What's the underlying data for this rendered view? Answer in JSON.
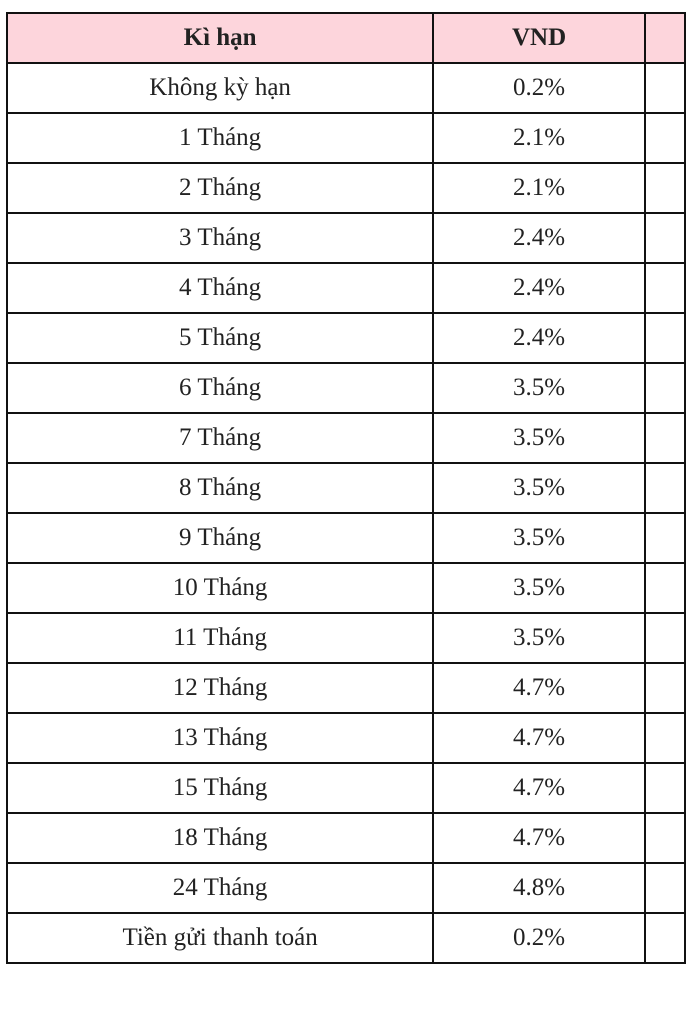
{
  "table": {
    "header_bg": "#fdd5dc",
    "headers": [
      "Kì hạn",
      "VND",
      ""
    ],
    "rows": [
      {
        "term": "Không kỳ hạn",
        "vnd": "0.2%"
      },
      {
        "term": "1 Tháng",
        "vnd": "2.1%"
      },
      {
        "term": "2 Tháng",
        "vnd": "2.1%"
      },
      {
        "term": "3 Tháng",
        "vnd": "2.4%"
      },
      {
        "term": "4 Tháng",
        "vnd": "2.4%"
      },
      {
        "term": "5 Tháng",
        "vnd": "2.4%"
      },
      {
        "term": "6 Tháng",
        "vnd": "3.5%"
      },
      {
        "term": "7 Tháng",
        "vnd": "3.5%"
      },
      {
        "term": "8 Tháng",
        "vnd": "3.5%"
      },
      {
        "term": "9 Tháng",
        "vnd": "3.5%"
      },
      {
        "term": "10 Tháng",
        "vnd": "3.5%"
      },
      {
        "term": "11 Tháng",
        "vnd": "3.5%"
      },
      {
        "term": "12 Tháng",
        "vnd": "4.7%"
      },
      {
        "term": "13 Tháng",
        "vnd": "4.7%"
      },
      {
        "term": "15 Tháng",
        "vnd": "4.7%"
      },
      {
        "term": "18 Tháng",
        "vnd": "4.7%"
      },
      {
        "term": "24 Tháng",
        "vnd": "4.8%"
      },
      {
        "term": "Tiền gửi thanh toán",
        "vnd": "0.2%"
      }
    ]
  }
}
